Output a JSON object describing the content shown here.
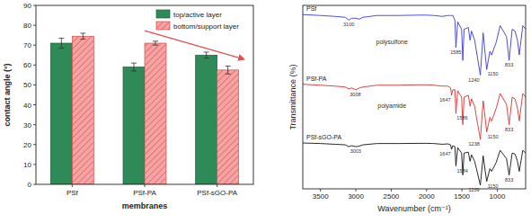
{
  "chart_data": [
    {
      "type": "bar",
      "categories": [
        "PSf",
        "PSf-PA",
        "PSf-sGO-PA"
      ],
      "series": [
        {
          "name": "top/active layer",
          "color": "#2e8b57",
          "values": [
            71,
            59,
            65
          ],
          "errors": [
            2.5,
            2,
            1.5
          ]
        },
        {
          "name": "bottom/support layer",
          "color": "#f5a3a3",
          "values": [
            74.5,
            71,
            57.5
          ],
          "errors": [
            1.5,
            1,
            2
          ]
        }
      ],
      "x_label": "membranes",
      "y_label": "contact angle (°)",
      "ylim": [
        0,
        90
      ],
      "yticks": [
        0,
        10,
        20,
        30,
        40,
        50,
        60,
        70,
        80,
        90
      ],
      "legend": "upper right"
    },
    {
      "type": "line",
      "x": [
        3750,
        3500,
        3300,
        3150,
        3100,
        3060,
        3000,
        2950,
        2900,
        2700,
        2400,
        2100,
        2000,
        1900,
        1780,
        1700,
        1660,
        1647,
        1630,
        1600,
        1585,
        1560,
        1505,
        1488,
        1470,
        1410,
        1385,
        1365,
        1320,
        1295,
        1240,
        1200,
        1170,
        1150,
        1105,
        1080,
        1015,
        960,
        870,
        833,
        790,
        750,
        715,
        690,
        640,
        600
      ],
      "series": [
        {
          "name": "PSf",
          "color": "#3a3ad8",
          "values": [
            95,
            94.5,
            94,
            93.5,
            92,
            93,
            93,
            92.5,
            93.5,
            94.5,
            94.5,
            94.7,
            94.7,
            94.5,
            94,
            94.5,
            94.5,
            94.5,
            94.5,
            92,
            77,
            91,
            87,
            70,
            87,
            88,
            81,
            86,
            81,
            75,
            62,
            85,
            73,
            65,
            75,
            73,
            80,
            89,
            83,
            70,
            87,
            86,
            81,
            73,
            89,
            87
          ]
        },
        {
          "name": "PSf-PA",
          "color": "#e03030",
          "values": [
            57,
            56.5,
            56,
            55.5,
            54.5,
            55,
            54,
            55,
            55.5,
            56.5,
            56.5,
            56.7,
            56.7,
            56.5,
            56,
            56,
            55,
            51,
            54,
            54,
            41,
            53.5,
            50,
            35,
            50,
            51,
            45,
            49,
            45,
            39,
            27,
            48,
            38,
            31,
            39,
            37,
            44,
            52,
            46,
            35,
            50,
            49,
            44,
            37,
            52,
            50
          ]
        },
        {
          "name": "PSf-sGO-PA",
          "color": "#111111",
          "values": [
            25,
            24.7,
            24.3,
            24,
            23,
            23.5,
            23,
            23.3,
            24,
            24.7,
            24.7,
            24.8,
            24.8,
            24.7,
            24.3,
            24.5,
            24,
            21.5,
            23.5,
            23,
            12.5,
            22.5,
            19.5,
            7.5,
            19.5,
            20,
            15,
            18.5,
            15,
            11,
            2,
            18,
            9.5,
            4,
            11,
            9.5,
            14.5,
            21,
            16.5,
            7.5,
            19.5,
            19,
            15,
            9.5,
            21,
            19.5
          ]
        }
      ],
      "x_label": "Wavenumber (cm⁻¹)",
      "y_label": "Transmittance (%)",
      "xlim": [
        3750,
        600
      ],
      "xticks": [
        3500,
        3000,
        2500,
        2000,
        1500,
        1000
      ],
      "ylim": [
        0,
        100
      ],
      "tick_labels": "x",
      "annotations": [
        {
          "text": "polysulfone",
          "series": 0
        },
        {
          "text": "polyamide",
          "series": 1
        },
        {
          "text": "3100",
          "x": 3100,
          "series": 0
        },
        {
          "text": "1585",
          "x": 1585,
          "series": 0
        },
        {
          "text": "1240",
          "x": 1240,
          "series": 0
        },
        {
          "text": "1150",
          "x": 1150,
          "series": 0
        },
        {
          "text": "833",
          "x": 833,
          "series": 0
        },
        {
          "text": "3008",
          "x": 3008,
          "series": 1
        },
        {
          "text": "1647",
          "x": 1647,
          "series": 1
        },
        {
          "text": "1586",
          "x": 1586,
          "series": 1
        },
        {
          "text": "1238",
          "x": 1238,
          "series": 1
        },
        {
          "text": "1150",
          "x": 1150,
          "series": 1
        },
        {
          "text": "833",
          "x": 833,
          "series": 1
        },
        {
          "text": "3003",
          "x": 3003,
          "series": 2
        },
        {
          "text": "1647",
          "x": 1647,
          "series": 2
        },
        {
          "text": "1584",
          "x": 1584,
          "series": 2
        },
        {
          "text": "1239",
          "x": 1239,
          "series": 2
        },
        {
          "text": "1150",
          "x": 1150,
          "series": 2
        },
        {
          "text": "833",
          "x": 833,
          "series": 2
        }
      ]
    }
  ]
}
